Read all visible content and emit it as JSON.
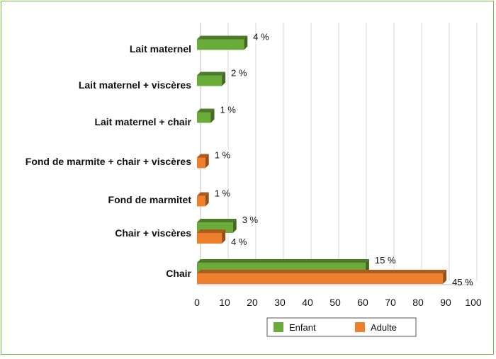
{
  "chart_data": {
    "type": "bar",
    "orientation": "horizontal",
    "categories": [
      "Lait maternel",
      "Lait maternel + viscères",
      "Lait maternel + chair",
      "Fond de marmite + chair + viscères",
      "Fond de marmitet",
      "Chair + viscères",
      "Chair"
    ],
    "series": [
      {
        "name": "Enfant",
        "color": "#6aab3a",
        "values": [
          17,
          9,
          5,
          null,
          null,
          13,
          61
        ],
        "labels": [
          "4 %",
          "2 %",
          "1 %",
          "",
          "",
          "3 %",
          "15 %"
        ]
      },
      {
        "name": "Adulte",
        "color": "#f07f2b",
        "values": [
          null,
          null,
          null,
          3,
          3,
          9,
          89
        ],
        "labels": [
          "",
          "",
          "",
          "1 %",
          "1 %",
          "4 %",
          "45 %"
        ]
      }
    ],
    "xlim": [
      0,
      100
    ],
    "xticks": [
      "0",
      "10",
      "20",
      "30",
      "40",
      "50",
      "60",
      "70",
      "80",
      "90",
      "100"
    ],
    "grid": true,
    "legend_position": "bottom"
  }
}
